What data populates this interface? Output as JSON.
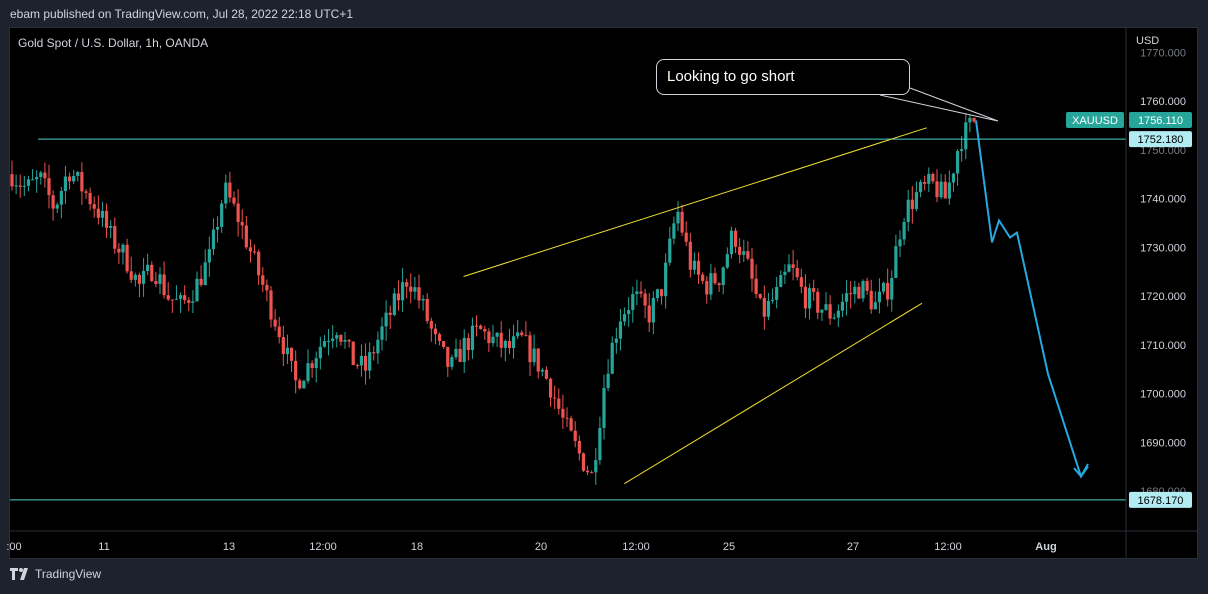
{
  "header": {
    "published": "ebam published on TradingView.com, Jul 28, 2022 22:18 UTC+1"
  },
  "symbol": {
    "title": "Gold Spot / U.S. Dollar, 1h, OANDA"
  },
  "footer": {
    "brand": "TradingView"
  },
  "callout": {
    "text": "Looking to go short"
  },
  "chart_data": {
    "type": "candlestick",
    "title": "Gold Spot / U.S. Dollar, 1h, OANDA",
    "currency": "USD",
    "ylim": [
      1673,
      1775
    ],
    "y_ticks": [
      "1690.000",
      "1700.000",
      "1710.000",
      "1720.000",
      "1730.000",
      "1740.000",
      "1760.000"
    ],
    "y_ticks_partial": [
      "1770.000",
      "1750.000",
      "1680.000"
    ],
    "x_ticks": [
      ":00",
      "11",
      "13",
      "12:00",
      "18",
      "20",
      "12:00",
      "25",
      "27",
      "12:00",
      "Aug"
    ],
    "last_price": {
      "symbol": "XAUUSD",
      "value": "1756.110"
    },
    "horizontal_levels": [
      {
        "value": 1752.18,
        "label": "1752.180"
      },
      {
        "value": 1678.17,
        "label": "1678.170"
      }
    ],
    "price_path": [
      1745,
      1742,
      1744,
      1738,
      1746,
      1742,
      1738,
      1732,
      1728,
      1722,
      1726,
      1720,
      1718,
      1722,
      1728,
      1742,
      1736,
      1728,
      1720,
      1712,
      1702,
      1706,
      1711,
      1714,
      1707,
      1705,
      1712,
      1718,
      1724,
      1718,
      1710,
      1705,
      1710,
      1713,
      1711,
      1709,
      1711,
      1707,
      1702,
      1694,
      1688,
      1683,
      1705,
      1716,
      1720,
      1716,
      1722,
      1738,
      1726,
      1722,
      1724,
      1733,
      1726,
      1716,
      1720,
      1726,
      1720,
      1718,
      1716,
      1720,
      1722,
      1718,
      1722,
      1737,
      1741,
      1743,
      1740,
      1752,
      1756
    ],
    "wedge_lines": [
      {
        "from": [
          18.6,
          1724
        ],
        "to": [
          28.4,
          1754.5
        ],
        "color": "#f0e130"
      },
      {
        "from": [
          22.0,
          1681.5
        ],
        "to": [
          28.3,
          1718.5
        ],
        "color": "#f0e130"
      }
    ],
    "projection": {
      "points": [
        1756,
        1731,
        1735.5,
        1732,
        1733,
        1704,
        1683,
        1685
      ],
      "color": "#26a9e0"
    },
    "colors": {
      "up": "#26a69a",
      "down": "#ef5350",
      "level": "#4dd0c8",
      "background": "#000000"
    }
  }
}
